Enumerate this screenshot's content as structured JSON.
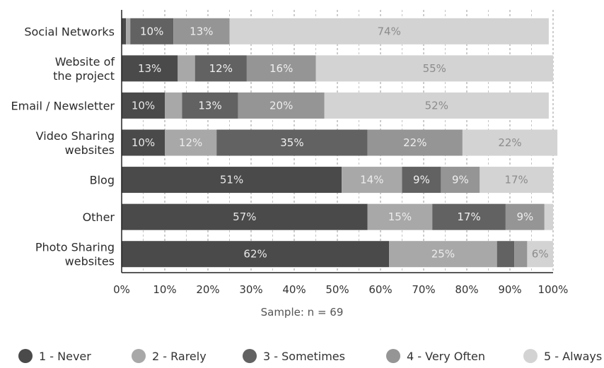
{
  "chart_data": {
    "type": "bar",
    "orientation": "horizontal",
    "stacked": true,
    "categories": [
      "Social Networks",
      "Website of\nthe project",
      "Email / Newsletter",
      "Video Sharing\nwebsites",
      "Blog",
      "Other",
      "Photo Sharing\nwebsites"
    ],
    "series": [
      {
        "name": "1 - Never",
        "values": [
          1,
          13,
          10,
          10,
          51,
          57,
          62
        ],
        "labels": [
          "",
          "13%",
          "10%",
          "10%",
          "51%",
          "57%",
          "62%"
        ]
      },
      {
        "name": "2 - Rarely",
        "values": [
          1,
          4,
          4,
          12,
          14,
          15,
          25
        ],
        "labels": [
          "",
          "",
          "",
          "12%",
          "14%",
          "15%",
          "25%"
        ]
      },
      {
        "name": "3 - Sometimes",
        "values": [
          10,
          12,
          13,
          35,
          9,
          17,
          4
        ],
        "labels": [
          "10%",
          "12%",
          "13%",
          "35%",
          "9%",
          "17%",
          ""
        ]
      },
      {
        "name": "4 - Very Often",
        "values": [
          13,
          16,
          20,
          22,
          9,
          9,
          3
        ],
        "labels": [
          "13%",
          "16%",
          "20%",
          "22%",
          "9%",
          "9%",
          ""
        ]
      },
      {
        "name": "5 - Always",
        "values": [
          74,
          55,
          52,
          22,
          17,
          2,
          6
        ],
        "labels": [
          "74%",
          "55%",
          "52%",
          "22%",
          "17%",
          "",
          "6%"
        ]
      }
    ],
    "colors": [
      "#4a4a4a",
      "#a8a8a8",
      "#626262",
      "#959595",
      "#d3d3d3"
    ],
    "label_colors": [
      "#e8e8e8",
      "#ececec",
      "#f0f0f0",
      "#eeeeee",
      "#8c8c8c"
    ],
    "x_ticks": [
      "0%",
      "10%",
      "20%",
      "30%",
      "40%",
      "50%",
      "60%",
      "70%",
      "80%",
      "90%",
      "100%"
    ],
    "xlim": [
      0,
      100
    ],
    "grid": "vertical dashed",
    "legend_position": "bottom",
    "note": "Sample: n = 69"
  }
}
